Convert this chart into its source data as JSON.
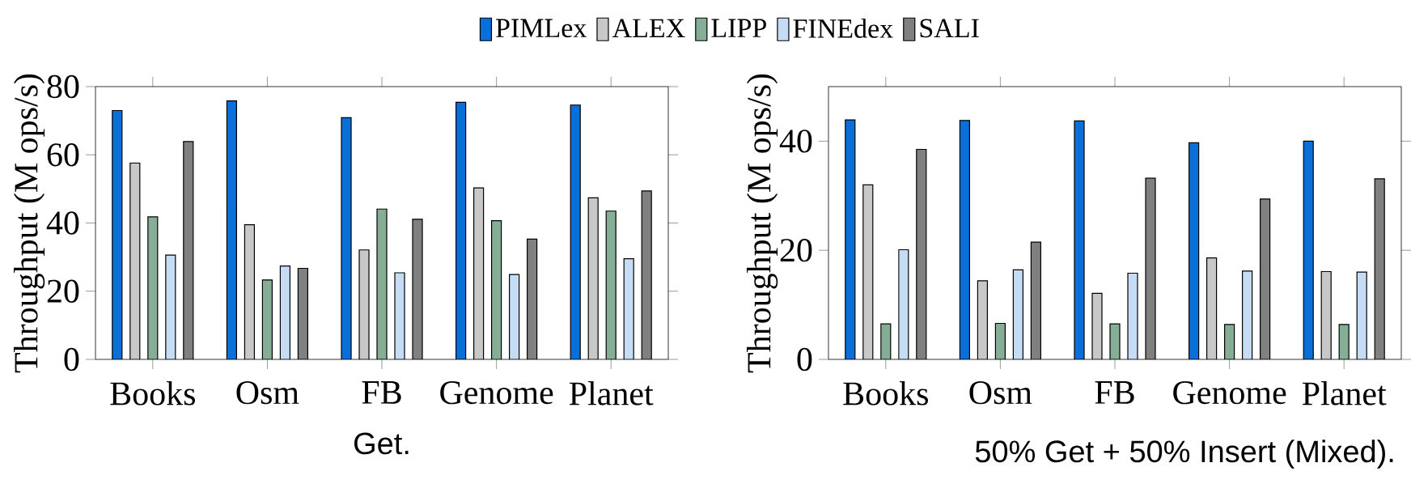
{
  "chart_data": [
    {
      "type": "bar",
      "title": "Get.",
      "ylabel": "Throughput (M ops/s)",
      "categories": [
        "Books",
        "Osm",
        "FB",
        "Genome",
        "Planet"
      ],
      "ylim": [
        0,
        80
      ],
      "yticks": [
        0,
        20,
        40,
        60,
        80
      ],
      "legend": "top",
      "series": [
        {
          "name": "PIMLex",
          "color": "#0a6fd8",
          "values": [
            73.0,
            75.8,
            70.9,
            75.4,
            74.6
          ]
        },
        {
          "name": "ALEX",
          "color": "#c8c8c8",
          "values": [
            57.6,
            39.5,
            32.1,
            50.3,
            47.4
          ]
        },
        {
          "name": "LIPP",
          "color": "#86ad96",
          "values": [
            41.8,
            23.3,
            44.1,
            40.7,
            43.5
          ]
        },
        {
          "name": "FINEdex",
          "color": "#c6dcf5",
          "values": [
            30.6,
            27.4,
            25.4,
            24.9,
            29.5
          ]
        },
        {
          "name": "SALI",
          "color": "#808080",
          "values": [
            63.9,
            26.7,
            41.1,
            35.3,
            49.4
          ]
        }
      ]
    },
    {
      "type": "bar",
      "title": "50% Get + 50% Insert (Mixed).",
      "ylabel": "Throughput (M ops/s)",
      "categories": [
        "Books",
        "Osm",
        "FB",
        "Genome",
        "Planet"
      ],
      "ylim": [
        0,
        50
      ],
      "yticks": [
        0,
        20,
        40
      ],
      "series": [
        {
          "color": "#0a6fd8",
          "values": [
            43.9,
            43.8,
            43.7,
            39.7,
            40.0
          ]
        },
        {
          "color": "#c8c8c8",
          "values": [
            32.0,
            14.4,
            12.1,
            18.6,
            16.1
          ]
        },
        {
          "color": "#86ad96",
          "values": [
            6.5,
            6.6,
            6.5,
            6.4,
            6.4
          ]
        },
        {
          "color": "#c6dcf5",
          "values": [
            20.1,
            16.4,
            15.8,
            16.2,
            16.0
          ]
        },
        {
          "color": "#808080",
          "values": [
            38.5,
            21.5,
            33.2,
            29.4,
            33.1
          ]
        }
      ]
    }
  ]
}
